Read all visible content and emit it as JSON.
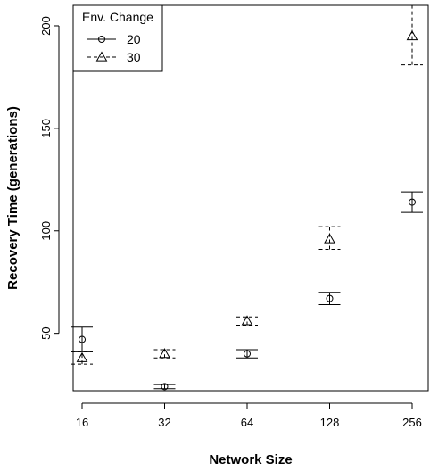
{
  "chart_data": {
    "type": "scatter",
    "xlabel": "Network Size",
    "ylabel": "Recovery Time (generations)",
    "categories": [
      "16",
      "32",
      "64",
      "128",
      "256"
    ],
    "yticks": [
      50,
      100,
      150,
      200
    ],
    "ylim": [
      22,
      210
    ],
    "legend": {
      "title": "Env. Change",
      "position": "top-left"
    },
    "series": [
      {
        "name": "20",
        "marker": "circle",
        "line_style": "solid",
        "values": [
          47,
          24,
          40,
          67,
          114
        ],
        "lower": [
          41,
          23,
          38,
          64,
          109
        ],
        "upper": [
          53,
          25,
          42,
          70,
          119
        ]
      },
      {
        "name": "30",
        "marker": "triangle",
        "line_style": "dashed",
        "values": [
          38,
          40,
          56,
          96,
          195
        ],
        "lower": [
          35,
          38,
          54,
          91,
          181
        ],
        "upper": [
          41,
          42,
          58,
          102,
          210
        ]
      }
    ]
  }
}
